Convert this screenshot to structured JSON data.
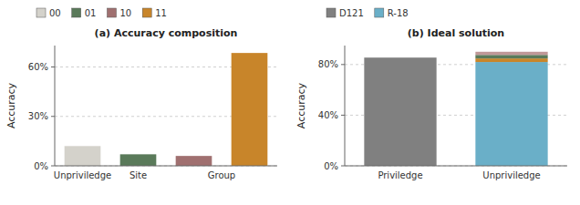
{
  "chart_data": [
    {
      "type": "bar",
      "title": "(a) Accuracy composition",
      "y_label": "Accuracy",
      "categories": [
        "Unpriviledge",
        "Site",
        null,
        null
      ],
      "annotations": [
        {
          "text": "Group"
        }
      ],
      "series": [
        {
          "name": "00",
          "color": "#d4d2cb",
          "values": [
            0.12,
            null,
            null,
            null
          ]
        },
        {
          "name": "01",
          "color": "#5a7a5a",
          "values": [
            null,
            0.07,
            null,
            null
          ]
        },
        {
          "name": "10",
          "color": "#a07070",
          "values": [
            null,
            null,
            0.06,
            null
          ]
        },
        {
          "name": "11",
          "color": "#c8852a",
          "values": [
            null,
            null,
            null,
            0.685
          ]
        }
      ],
      "ylim": [
        0,
        0.73
      ],
      "yticks": [
        {
          "value": 0.0,
          "label": "0%"
        },
        {
          "value": 0.3,
          "label": "30%"
        },
        {
          "value": 0.6,
          "label": "60%"
        }
      ],
      "grid": true,
      "legend": "top"
    },
    {
      "type": "bar",
      "title": "(b) Ideal solution",
      "y_label": "Accuracy",
      "categories": [
        "Priviledge",
        "Unpriviledge"
      ],
      "stacked": true,
      "series": [
        {
          "name": "D121",
          "color": "#808080",
          "values": [
            0.855,
            null
          ]
        },
        {
          "name": "R-18",
          "color": "#6aafc8",
          "values": [
            null,
            0.82
          ]
        },
        {
          "color": "#c8852a",
          "values": [
            null,
            0.028
          ]
        },
        {
          "color": "#5a7a5a",
          "values": [
            null,
            0.028
          ]
        },
        {
          "color": "#c09898",
          "values": [
            null,
            0.025
          ]
        }
      ],
      "ylim": [
        0,
        0.95
      ],
      "yticks": [
        {
          "value": 0.0,
          "label": "0%"
        },
        {
          "value": 0.4,
          "label": "40%"
        },
        {
          "value": 0.8,
          "label": "80%"
        }
      ],
      "grid": true,
      "legend": "top"
    }
  ]
}
